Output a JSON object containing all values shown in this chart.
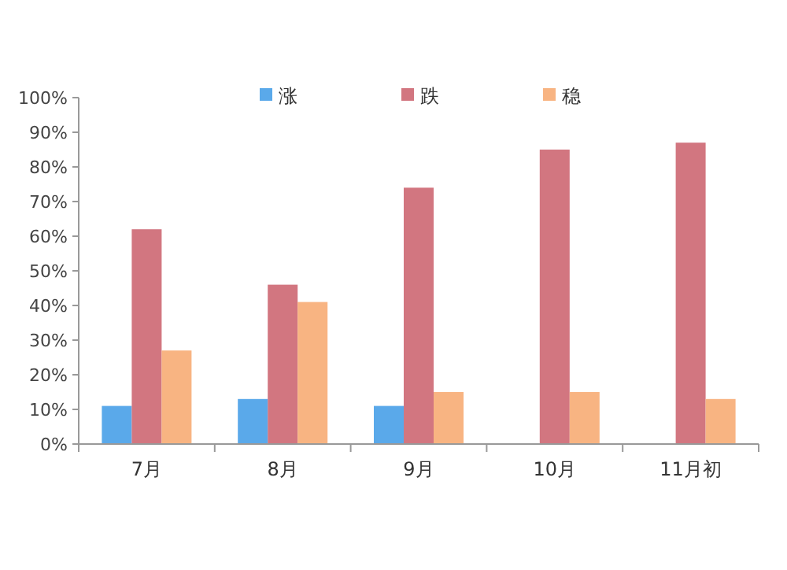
{
  "chart_data": {
    "type": "bar",
    "categories": [
      "7月",
      "8月",
      "9月",
      "10月",
      "11月初"
    ],
    "series": [
      {
        "name": "涨",
        "color": "#5aa9ea",
        "values": [
          11,
          13,
          11,
          null,
          null
        ]
      },
      {
        "name": "跌",
        "color": "#d27680",
        "values": [
          62,
          46,
          74,
          85,
          87
        ]
      },
      {
        "name": "稳",
        "color": "#f8b482",
        "values": [
          27,
          41,
          15,
          15,
          13
        ]
      }
    ],
    "ylim": [
      0,
      100
    ],
    "yticks": [
      {
        "value": 0,
        "label": "0%"
      },
      {
        "value": 10,
        "label": "10%"
      },
      {
        "value": 20,
        "label": "20%"
      },
      {
        "value": 30,
        "label": "30%"
      },
      {
        "value": 40,
        "label": "40%"
      },
      {
        "value": 50,
        "label": "50%"
      },
      {
        "value": 60,
        "label": "60%"
      },
      {
        "value": 70,
        "label": "70%"
      },
      {
        "value": 80,
        "label": "80%"
      },
      {
        "value": 90,
        "label": "90%"
      },
      {
        "value": 100,
        "label": "100%"
      }
    ],
    "legend": "top",
    "grid": false
  }
}
